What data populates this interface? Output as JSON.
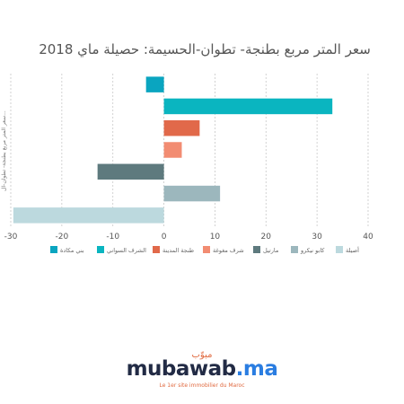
{
  "chart_data": {
    "type": "bar",
    "orientation": "horizontal",
    "title": "سعر المتر مربع بطنجة- تطوان-الحسيمة: حصيلة ماي 2018",
    "ylabel": "سعر المتر مربع بطنجة- تطوان-ال...",
    "xlabel": "",
    "xlim": [
      -30,
      40
    ],
    "xticks": [
      -30,
      -20,
      -10,
      0,
      10,
      20,
      30,
      40
    ],
    "grid": "vertical-dashed",
    "legend_position": "bottom",
    "series": [
      {
        "name": "بني مكادة",
        "value": -3.5,
        "color": "#0aa5c0"
      },
      {
        "name": "الشرف السواني",
        "value": 33,
        "color": "#0ab5c0"
      },
      {
        "name": "طنجة المدينة",
        "value": 7,
        "color": "#e1694a"
      },
      {
        "name": "شرف مغوغة",
        "value": 3.5,
        "color": "#f28c72"
      },
      {
        "name": "مارتيل",
        "value": -13,
        "color": "#5e7a7e"
      },
      {
        "name": "كابو نيكرو",
        "value": 11,
        "color": "#9cb7bd"
      },
      {
        "name": "أصيلة",
        "value": -29.5,
        "color": "#bcd9de"
      }
    ]
  },
  "branding": {
    "arabic": "مبوّب",
    "name": "mubawab",
    "ext": ".ma",
    "tagline": "Le 1er site immobilier du Maroc"
  }
}
